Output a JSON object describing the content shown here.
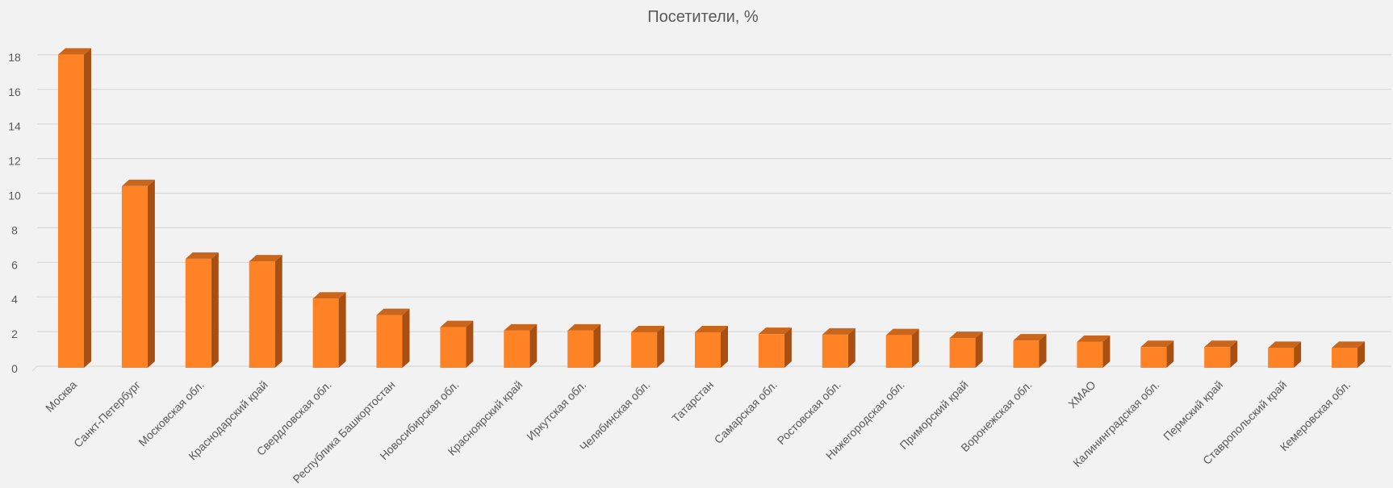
{
  "chart_data": {
    "type": "bar",
    "title": "Посетители, %",
    "xlabel": "",
    "ylabel": "",
    "ylim": [
      0,
      18
    ],
    "yticks": [
      0,
      2,
      4,
      6,
      8,
      10,
      12,
      14,
      16,
      18
    ],
    "grid": true,
    "legend": "none",
    "style": "3d-column",
    "colors": {
      "background": "#f2f2f2",
      "bar_front": "#ff8224",
      "bar_top": "#c9661c",
      "bar_side": "#a84f12",
      "grid": "#d9d9d9",
      "text": "#595959"
    },
    "categories": [
      "Москва",
      "Санкт-Петербург",
      "Московская обл.",
      "Краснодарский край",
      "Свердловская обл.",
      "Республика Башкортостан",
      "Новосибирская обл.",
      "Красноярский край",
      "Иркутская обл.",
      "Челябинская обл.",
      "Татарстан",
      "Самарская обл.",
      "Ростовская обл.",
      "Нижегородская обл.",
      "Приморский край",
      "Воронежская обл.",
      "ХМАО",
      "Калининградская обл.",
      "Пермский край",
      "Ставропольский край",
      "Кемеровская обл."
    ],
    "values": [
      18.1,
      10.5,
      6.3,
      6.15,
      4.0,
      3.05,
      2.35,
      2.15,
      2.15,
      2.05,
      2.05,
      1.95,
      1.92,
      1.88,
      1.72,
      1.58,
      1.5,
      1.2,
      1.2,
      1.15,
      1.15
    ]
  }
}
